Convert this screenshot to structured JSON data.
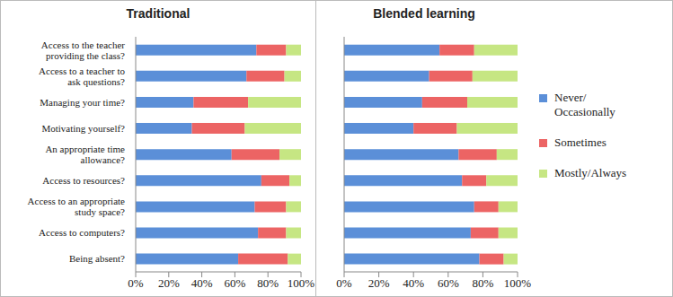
{
  "chart_data": [
    {
      "type": "bar",
      "title": "Traditional",
      "orientation": "horizontal",
      "stacked": true,
      "grid": false,
      "legend": "right",
      "tick_labels": true,
      "categories": [
        "Access to the teacher providing the class?",
        "Access to a teacher to ask questions?",
        "Managing your time?",
        "Motivating yourself?",
        "An appropriate time allowance?",
        "Access to resources?",
        "Access to an appropriate study space?",
        "Access to computers?",
        "Being absent?"
      ],
      "series": [
        {
          "name": "Never/ Occasionally",
          "color": "#5b8fd8",
          "values": [
            73,
            67,
            35,
            34,
            58,
            76,
            72,
            74,
            62
          ]
        },
        {
          "name": "Sometimes",
          "color": "#ec6464",
          "values": [
            18,
            23,
            33,
            32,
            29,
            17,
            19,
            17,
            30
          ]
        },
        {
          "name": "Mostly/Always",
          "color": "#c6e683",
          "values": [
            9,
            10,
            32,
            34,
            13,
            7,
            9,
            9,
            8
          ]
        }
      ],
      "xlim": [
        0,
        100
      ],
      "xticks": [
        {
          "value": 0,
          "label": "0%"
        },
        {
          "value": 20,
          "label": "20%"
        },
        {
          "value": 40,
          "label": "40%"
        },
        {
          "value": 60,
          "label": "60%"
        },
        {
          "value": 80,
          "label": "80%"
        },
        {
          "value": 100,
          "label": "100%"
        }
      ]
    },
    {
      "type": "bar",
      "title": "Blended learning",
      "orientation": "horizontal",
      "stacked": true,
      "grid": false,
      "legend": "right",
      "tick_labels": "x",
      "categories": [
        "Access to the teacher providing the class?",
        "Access to a teacher to ask questions?",
        "Managing your time?",
        "Motivating yourself?",
        "An appropriate time allowance?",
        "Access to resources?",
        "Access to an appropriate study space?",
        "Access to computers?",
        "Being absent?"
      ],
      "series": [
        {
          "name": "Never/ Occasionally",
          "color": "#5b8fd8",
          "values": [
            55,
            49,
            45,
            40,
            66,
            68,
            75,
            73,
            78
          ]
        },
        {
          "name": "Sometimes",
          "color": "#ec6464",
          "values": [
            20,
            25,
            26,
            25,
            22,
            14,
            14,
            16,
            14
          ]
        },
        {
          "name": "Mostly/Always",
          "color": "#c6e683",
          "values": [
            25,
            26,
            29,
            35,
            12,
            18,
            11,
            11,
            8
          ]
        }
      ],
      "xlim": [
        0,
        100
      ],
      "xticks": [
        {
          "value": 0,
          "label": "0%"
        },
        {
          "value": 20,
          "label": "20%"
        },
        {
          "value": 40,
          "label": "40%"
        },
        {
          "value": 60,
          "label": "60%"
        },
        {
          "value": 80,
          "label": "80%"
        },
        {
          "value": 100,
          "label": "100%"
        }
      ]
    }
  ]
}
